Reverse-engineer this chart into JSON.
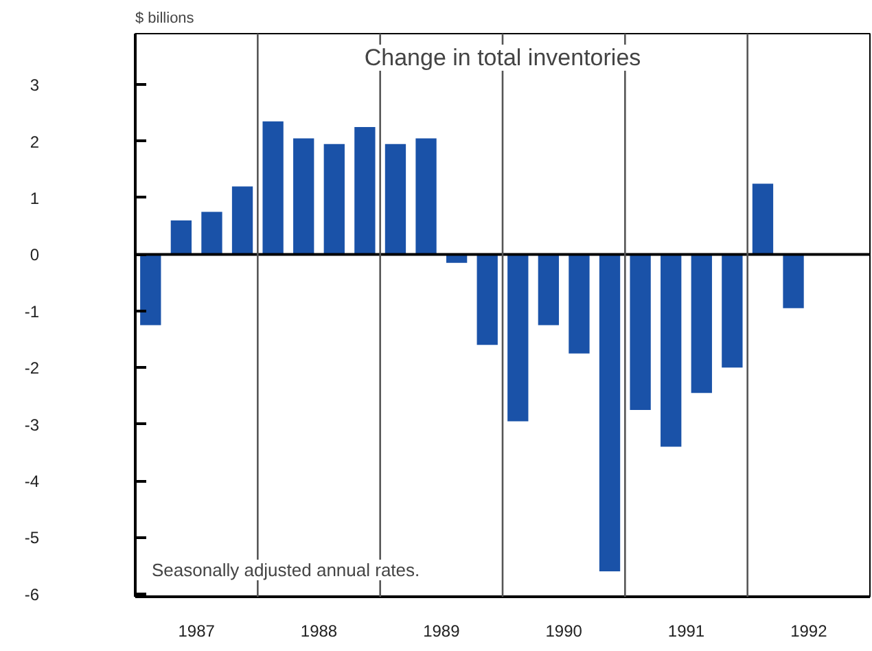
{
  "chart_data": {
    "type": "bar",
    "title": "Change in total inventories",
    "ylabel": "$ billions",
    "annotations": [
      "Seasonally adjusted annual rates."
    ],
    "x": [
      1987.125,
      1987.375,
      1987.625,
      1987.875,
      1988.125,
      1988.375,
      1988.625,
      1988.875,
      1989.125,
      1989.375,
      1989.625,
      1989.875,
      1990.125,
      1990.375,
      1990.625,
      1990.875,
      1991.125,
      1991.375,
      1991.625,
      1991.875,
      1992.125,
      1992.375
    ],
    "series": [
      {
        "color": "#1a52a8",
        "values": [
          -1.25,
          0.6,
          0.75,
          1.2,
          2.35,
          2.05,
          1.95,
          2.25,
          1.95,
          2.05,
          -0.15,
          -1.6,
          -2.95,
          -1.25,
          -1.75,
          -5.6,
          -2.75,
          -3.4,
          -2.45,
          -2.0,
          1.25,
          -0.95
        ]
      }
    ],
    "xlim": [
      1987,
      1993
    ],
    "xticks": [
      {
        "value": 1987.5,
        "label": "1987"
      },
      {
        "value": 1988.5,
        "label": "1988"
      },
      {
        "value": 1989.5,
        "label": "1989"
      },
      {
        "value": 1990.5,
        "label": "1990"
      },
      {
        "value": 1991.5,
        "label": "1991"
      },
      {
        "value": 1992.5,
        "label": "1992"
      }
    ],
    "ylim": [
      -6.05,
      3.9
    ],
    "yticks": [
      -6,
      -5,
      -4,
      -3,
      -2,
      -1,
      0,
      1,
      2,
      3
    ],
    "ref_lines": [
      {
        "axis": "y",
        "value": 0,
        "color": "#000000"
      },
      {
        "axis": "x",
        "value": 1988,
        "color": "#555555"
      },
      {
        "axis": "x",
        "value": 1989,
        "color": "#555555"
      },
      {
        "axis": "x",
        "value": 1990,
        "color": "#555555"
      },
      {
        "axis": "x",
        "value": 1991,
        "color": "#555555"
      },
      {
        "axis": "x",
        "value": 1992,
        "color": "#555555"
      }
    ],
    "grid": false
  }
}
